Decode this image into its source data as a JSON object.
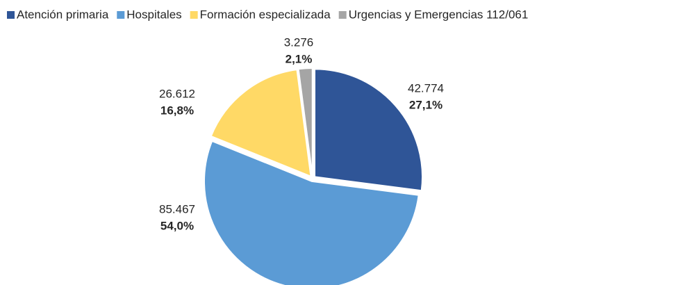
{
  "chart_data": {
    "type": "pie",
    "categories": [
      "Atención primaria",
      "Hospitales",
      "Formación especializada",
      "Urgencias y Emergencias 112/061"
    ],
    "values": [
      42774,
      85467,
      26612,
      3276
    ],
    "value_labels": [
      "42.774",
      "85.467",
      "26.612",
      "3.276"
    ],
    "percentages": [
      27.1,
      54.0,
      16.8,
      2.1
    ],
    "percentage_labels": [
      "27,1%",
      "54,0%",
      "16,8%",
      "2,1%"
    ],
    "colors": [
      "#2f5597",
      "#5b9bd5",
      "#ffd966",
      "#a5a5a5"
    ],
    "legend": "top"
  }
}
